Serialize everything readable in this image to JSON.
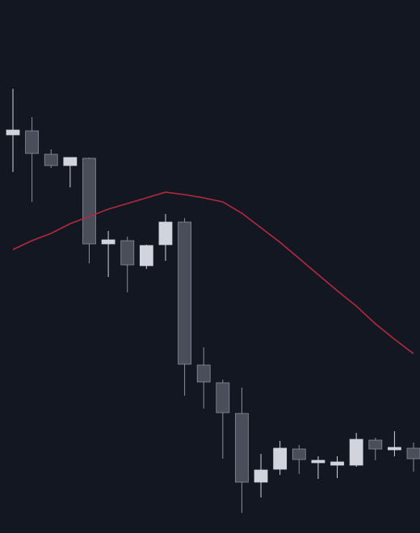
{
  "chart_data": {
    "type": "candlestick",
    "categories": [
      null,
      null,
      null,
      null,
      null,
      null,
      null,
      null,
      null,
      null,
      null,
      null,
      null,
      null,
      null,
      null,
      null,
      null,
      null,
      null,
      null,
      null
    ],
    "open": [
      493,
      498,
      469,
      455,
      464,
      358,
      362,
      331,
      357,
      385,
      208,
      186,
      148,
      63,
      79,
      104,
      87,
      84,
      84,
      115,
      103,
      105
    ],
    "high": [
      550,
      515,
      475,
      465,
      465,
      374,
      367,
      357,
      395,
      390,
      230,
      190,
      180,
      98,
      114,
      109,
      95,
      95,
      124,
      118,
      126,
      112
    ],
    "low": [
      447,
      410,
      452,
      428,
      334,
      317,
      298,
      327,
      337,
      170,
      154,
      92,
      25,
      44,
      72,
      73,
      67,
      68,
      82,
      90,
      95,
      76
    ],
    "close": [
      499,
      470,
      455,
      465,
      358,
      363,
      332,
      356,
      385,
      209,
      187,
      149,
      63,
      78,
      105,
      91,
      90,
      88,
      116,
      104,
      106,
      92
    ],
    "up_color": "#d1d4dc",
    "down_color": "#4a4e5a",
    "line": {
      "color": "#b22a3e",
      "values": [
        351,
        362,
        371,
        383,
        392,
        401,
        408,
        415,
        422,
        419,
        415,
        410,
        396,
        378,
        360,
        340,
        320,
        300,
        281,
        259,
        240,
        222
      ]
    },
    "ylim": [
      0,
      660
    ],
    "background": "#131722"
  }
}
